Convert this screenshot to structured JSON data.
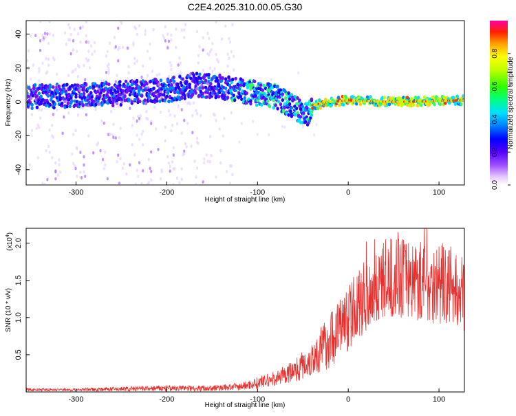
{
  "title": "C2E4.2025.310.00.05.G30",
  "chart_data": [
    {
      "type": "heatmap",
      "xlabel": "Height of straight line (km)",
      "ylabel": "Frequency (Hz)",
      "xlim": [
        -355,
        128
      ],
      "ylim": [
        -49,
        48
      ],
      "xticks": [
        -300,
        -200,
        -100,
        0,
        100
      ],
      "yticks": [
        -40,
        -20,
        0,
        20,
        40
      ],
      "colorbar": {
        "label": "Normalized spectral amplitude",
        "range": [
          0,
          1
        ],
        "ticks": [
          "0.0",
          "0.2",
          "0.4",
          "0.6",
          "0.8"
        ],
        "tick_values": [
          0.0,
          0.2,
          0.4,
          0.6,
          0.8
        ]
      },
      "trace": [
        {
          "x": -355,
          "y": 3
        },
        {
          "x": -300,
          "y": 4
        },
        {
          "x": -250,
          "y": 5
        },
        {
          "x": -200,
          "y": 7
        },
        {
          "x": -170,
          "y": 10
        },
        {
          "x": -140,
          "y": 9
        },
        {
          "x": -120,
          "y": 7
        },
        {
          "x": -100,
          "y": 5
        },
        {
          "x": -80,
          "y": 3
        },
        {
          "x": -60,
          "y": -3
        },
        {
          "x": -45,
          "y": -8
        },
        {
          "x": -40,
          "y": -2
        },
        {
          "x": -20,
          "y": 0
        },
        {
          "x": 0,
          "y": 1
        },
        {
          "x": 50,
          "y": 0
        },
        {
          "x": 128,
          "y": 1
        }
      ]
    },
    {
      "type": "line",
      "xlabel": "Height of straight line (km)",
      "ylabel": "SNR (10 * v/v)",
      "scale_label": "(x10",
      "scale_exponent": "4",
      "scale_suffix": ")",
      "xlim": [
        -355,
        128
      ],
      "ylim": [
        0,
        2.2
      ],
      "xticks": [
        -300,
        -200,
        -100,
        0,
        100
      ],
      "yticks": [
        "0.5",
        "1.0",
        "1.5",
        "2.0"
      ],
      "ytick_values": [
        0.5,
        1.0,
        1.5,
        2.0
      ],
      "series": [
        {
          "color": "#e8302e",
          "x": [
            -355,
            -300,
            -250,
            -200,
            -150,
            -120,
            -100,
            -80,
            -60,
            -40,
            -20,
            0,
            20,
            40,
            60,
            80,
            100,
            128
          ],
          "y": [
            0.03,
            0.03,
            0.04,
            0.05,
            0.05,
            0.07,
            0.12,
            0.18,
            0.28,
            0.45,
            0.7,
            1.0,
            1.3,
            1.5,
            1.55,
            1.5,
            1.45,
            1.3
          ],
          "amplitude": [
            0.02,
            0.02,
            0.03,
            0.04,
            0.04,
            0.05,
            0.08,
            0.1,
            0.15,
            0.25,
            0.38,
            0.45,
            0.5,
            0.55,
            0.55,
            0.55,
            0.55,
            0.5
          ]
        }
      ]
    }
  ]
}
